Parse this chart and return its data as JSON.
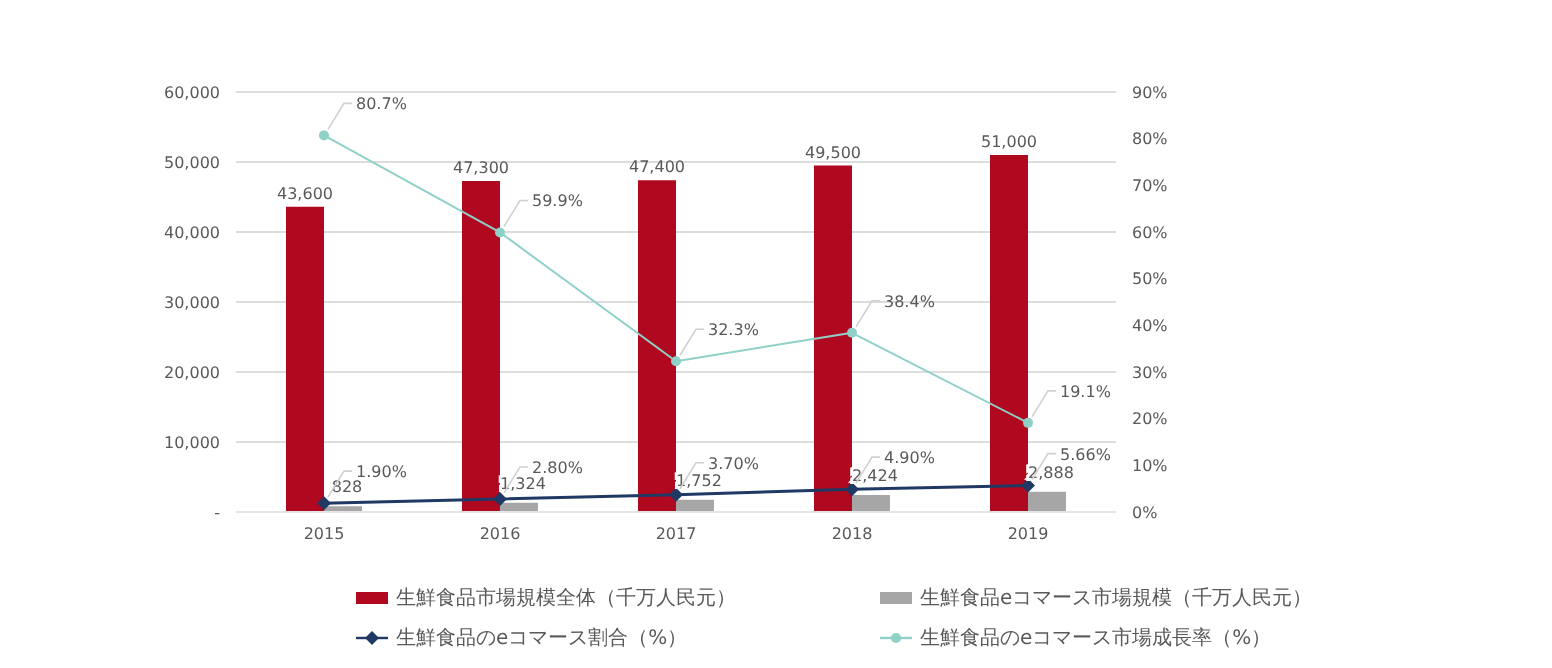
{
  "chart_data": {
    "type": "bar",
    "categories": [
      "2015",
      "2016",
      "2017",
      "2018",
      "2019"
    ],
    "series": [
      {
        "name": "生鮮食品市場規模全体（千万人民元）",
        "color": "#b0091f",
        "values": [
          43600,
          47300,
          47400,
          49500,
          51000
        ],
        "value_labels": [
          "43,600",
          "47,300",
          "47,400",
          "49,500",
          "51,000"
        ]
      },
      {
        "name": "生鮮食品eコマース市場規模（千万人民元）",
        "color": "#a6a6a6",
        "values": [
          828,
          1324,
          1752,
          2424,
          2888
        ],
        "value_labels": [
          "828",
          "1,324",
          "1,752",
          "2,424",
          "2,888"
        ]
      },
      {
        "name": "生鮮食品のeコマース割合（%）",
        "type": "line",
        "axis": "y2",
        "color": "#1f3864",
        "marker": "diamond",
        "values": [
          1.9,
          2.8,
          3.7,
          4.9,
          5.66
        ],
        "value_labels": [
          "1.90%",
          "2.80%",
          "3.70%",
          "4.90%",
          "5.66%"
        ]
      },
      {
        "name": "生鮮食品のeコマース市場成長率（%）",
        "type": "line",
        "axis": "y2",
        "color": "#8fd0c8",
        "marker": "circle",
        "values": [
          80.7,
          59.9,
          32.3,
          38.4,
          19.1
        ],
        "value_labels": [
          "80.7%",
          "59.9%",
          "32.3%",
          "38.4%",
          "19.1%"
        ]
      }
    ],
    "ylim": [
      0,
      60000
    ],
    "yticks": [
      {
        "value": 0,
        "label": "-"
      },
      {
        "value": 10000,
        "label": "10,000"
      },
      {
        "value": 20000,
        "label": "20,000"
      },
      {
        "value": 30000,
        "label": "30,000"
      },
      {
        "value": 40000,
        "label": "40,000"
      },
      {
        "value": 50000,
        "label": "50,000"
      },
      {
        "value": 60000,
        "label": "60,000"
      }
    ],
    "y2lim": [
      0,
      90
    ],
    "y2ticks": [
      {
        "value": 0,
        "label": "0%"
      },
      {
        "value": 10,
        "label": "10%"
      },
      {
        "value": 20,
        "label": "20%"
      },
      {
        "value": 30,
        "label": "30%"
      },
      {
        "value": 40,
        "label": "40%"
      },
      {
        "value": 50,
        "label": "50%"
      },
      {
        "value": 60,
        "label": "60%"
      },
      {
        "value": 70,
        "label": "70%"
      },
      {
        "value": 80,
        "label": "80%"
      },
      {
        "value": 90,
        "label": "90%"
      }
    ],
    "grid": "y",
    "legend": "bottom"
  }
}
